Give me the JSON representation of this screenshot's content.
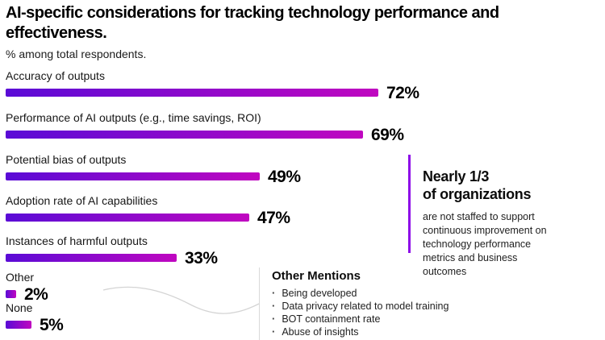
{
  "header": {
    "title": "AI-specific considerations for tracking technology performance and effectiveness.",
    "subtitle": "% among total respondents."
  },
  "chart_data": {
    "type": "bar",
    "orientation": "horizontal",
    "categories": [
      "Accuracy of outputs",
      "Performance of AI outputs (e.g., time savings, ROI)",
      "Potential bias of outputs",
      "Adoption rate of AI capabilities",
      "Instances of harmful outputs",
      "Other",
      "None"
    ],
    "values": [
      72,
      69,
      49,
      47,
      33,
      2,
      5
    ],
    "value_suffix": "%",
    "xlim": [
      0,
      100
    ],
    "grid": false,
    "legend": false,
    "bar_gradient_start": "#5a0bd6",
    "bar_gradient_end": "#c007c0"
  },
  "annotation": {
    "headline_lines": [
      "Nearly 1/3",
      "of organizations"
    ],
    "body": "are not staffed to support continuous improvement on technology performance metrics and business outcomes",
    "accent_color": "#8d0be8"
  },
  "other_mentions": {
    "heading": "Other Mentions",
    "bullet_glyph": "·",
    "items": [
      "Being developed",
      "Data privacy related to model training",
      "BOT containment rate",
      "Abuse of insights"
    ],
    "connector_color": "#d4d4d4"
  }
}
